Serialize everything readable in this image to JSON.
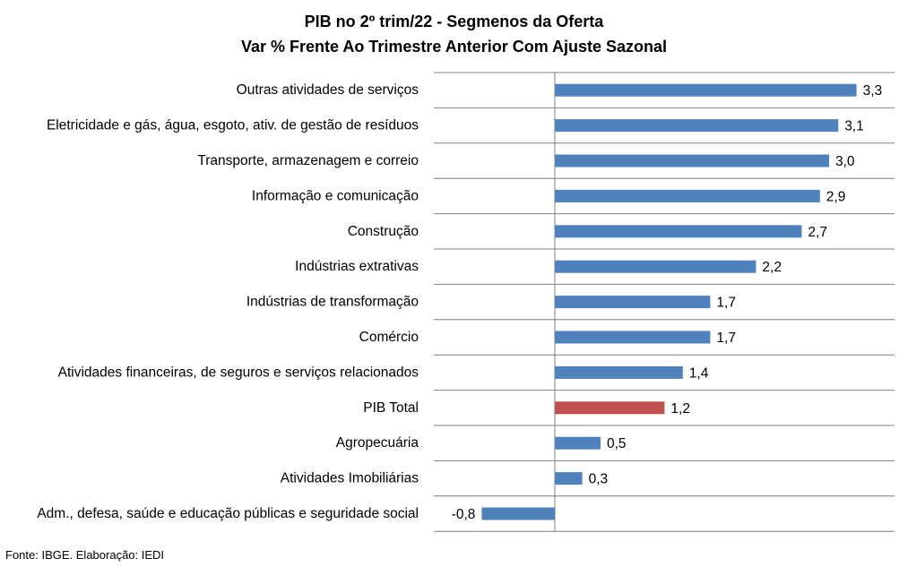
{
  "chart_data": {
    "type": "bar",
    "orientation": "horizontal",
    "title": "PIB no 2º trim/22 - Segmenos da Oferta",
    "subtitle": "Var % Frente Ao Trimestre Anterior Com Ajuste Sazonal",
    "categories": [
      "Outras atividades de serviços",
      "Eletricidade e gás, água, esgoto, ativ. de gestão de resíduos",
      "Transporte, armazenagem e correio",
      "Informação e comunicação",
      "Construção",
      "Indústrias extrativas",
      "Indústrias de transformação",
      "Comércio",
      "Atividades financeiras, de seguros e serviços relacionados",
      "PIB Total",
      "Agropecuária",
      "Atividades Imobiliárias",
      "Adm., defesa, saúde e educação públicas e seguridade social"
    ],
    "values": [
      3.3,
      3.1,
      3.0,
      2.9,
      2.7,
      2.2,
      1.7,
      1.7,
      1.4,
      1.2,
      0.5,
      0.3,
      -0.8
    ],
    "value_labels": [
      "3,3",
      "3,1",
      "3,0",
      "2,9",
      "2,7",
      "2,2",
      "1,7",
      "1,7",
      "1,4",
      "1,2",
      "0,5",
      "0,3",
      "-0,8"
    ],
    "highlight_category": "PIB Total",
    "colors": {
      "default": "#4f81bd",
      "highlight": "#c0504d",
      "grid": "#7f7f7f"
    },
    "xlim": [
      -1.0,
      3.5
    ],
    "grid": true,
    "legend": "none"
  },
  "source": "Fonte: IBGE. Elaboração: IEDI"
}
